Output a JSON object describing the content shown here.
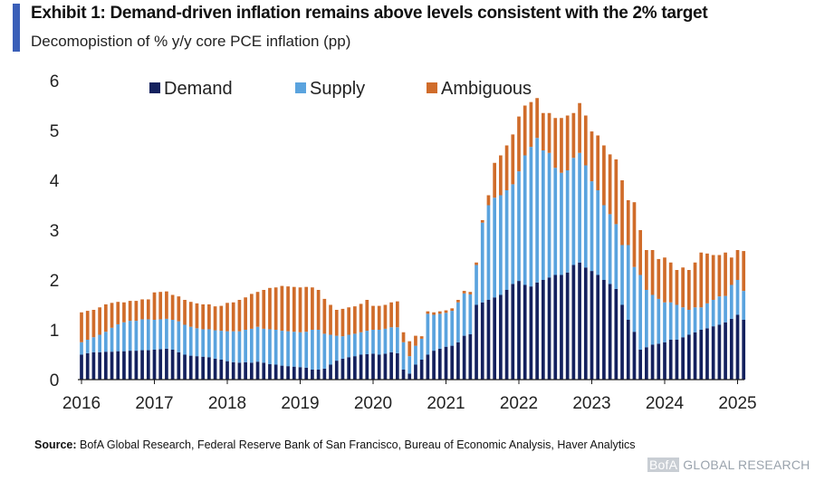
{
  "header": {
    "title": "Exhibit 1: Demand-driven inflation remains above levels consistent with the 2% target",
    "subtitle": "Decomopistion of % y/y core PCE inflation (pp)"
  },
  "footer": {
    "source_label": "Source:",
    "source_text": " BofA Global Research, Federal Reserve Bank of San Francisco, Bureau of Economic Analysis, Haver Analytics",
    "brand_bofa": "BofA",
    "brand_rest": " GLOBAL RESEARCH"
  },
  "chart_data": {
    "type": "bar",
    "stacked": true,
    "frequency": "monthly",
    "start": "2016-01",
    "ylim": [
      0,
      6
    ],
    "yticks": [
      "0",
      "1",
      "2",
      "3",
      "4",
      "5",
      "6"
    ],
    "xticks": [
      "2016",
      "2017",
      "2018",
      "2019",
      "2020",
      "2021",
      "2022",
      "2023",
      "2024",
      "2025"
    ],
    "grid": false,
    "legend_position": "top",
    "colors": {
      "demand": "#14215e",
      "supply": "#5aa3de",
      "ambiguous": "#d06c2a"
    },
    "series": [
      {
        "name": "Demand",
        "values": [
          0.5,
          0.53,
          0.55,
          0.55,
          0.56,
          0.56,
          0.57,
          0.57,
          0.58,
          0.58,
          0.59,
          0.59,
          0.6,
          0.61,
          0.62,
          0.6,
          0.55,
          0.5,
          0.48,
          0.47,
          0.46,
          0.45,
          0.42,
          0.4,
          0.37,
          0.35,
          0.34,
          0.35,
          0.34,
          0.36,
          0.34,
          0.31,
          0.3,
          0.28,
          0.27,
          0.26,
          0.25,
          0.24,
          0.2,
          0.2,
          0.22,
          0.3,
          0.38,
          0.42,
          0.45,
          0.47,
          0.5,
          0.51,
          0.52,
          0.5,
          0.52,
          0.55,
          0.53,
          0.2,
          0.12,
          0.3,
          0.4,
          0.5,
          0.58,
          0.62,
          0.66,
          0.68,
          0.75,
          0.88,
          0.91,
          1.5,
          1.55,
          1.6,
          1.65,
          1.7,
          1.8,
          1.92,
          1.98,
          1.9,
          1.87,
          1.95,
          2.0,
          2.05,
          2.1,
          2.1,
          2.15,
          2.3,
          2.35,
          2.25,
          2.18,
          2.1,
          2.0,
          1.92,
          1.82,
          1.5,
          1.2,
          0.96,
          0.6,
          0.65,
          0.7,
          0.72,
          0.75,
          0.8,
          0.8,
          0.85,
          0.9,
          0.95,
          1.0,
          1.03,
          1.07,
          1.1,
          1.15,
          1.22,
          1.3,
          1.2
        ]
      },
      {
        "name": "Supply",
        "values": [
          0.25,
          0.27,
          0.3,
          0.35,
          0.4,
          0.48,
          0.54,
          0.58,
          0.6,
          0.6,
          0.62,
          0.62,
          0.6,
          0.6,
          0.6,
          0.6,
          0.62,
          0.6,
          0.58,
          0.56,
          0.55,
          0.56,
          0.57,
          0.58,
          0.6,
          0.62,
          0.63,
          0.65,
          0.68,
          0.7,
          0.68,
          0.7,
          0.7,
          0.7,
          0.7,
          0.7,
          0.7,
          0.72,
          0.8,
          0.8,
          0.7,
          0.6,
          0.5,
          0.45,
          0.45,
          0.45,
          0.45,
          0.47,
          0.48,
          0.5,
          0.5,
          0.5,
          0.52,
          0.55,
          0.35,
          0.38,
          0.42,
          0.82,
          0.72,
          0.7,
          0.68,
          0.7,
          0.8,
          0.85,
          0.8,
          0.8,
          1.6,
          1.9,
          2.0,
          2.0,
          2.0,
          2.0,
          2.2,
          2.6,
          2.8,
          2.9,
          2.6,
          2.5,
          2.15,
          2.05,
          2.05,
          2.15,
          2.2,
          2.05,
          1.8,
          1.7,
          1.5,
          1.4,
          1.3,
          1.2,
          1.5,
          1.3,
          1.5,
          1.15,
          1.0,
          0.9,
          0.8,
          0.75,
          0.7,
          0.6,
          0.5,
          0.5,
          0.45,
          0.5,
          0.53,
          0.57,
          0.53,
          0.68,
          0.7,
          0.58
        ]
      },
      {
        "name": "Ambiguous",
        "values": [
          0.6,
          0.58,
          0.55,
          0.55,
          0.55,
          0.5,
          0.45,
          0.4,
          0.4,
          0.4,
          0.4,
          0.4,
          0.55,
          0.55,
          0.55,
          0.5,
          0.5,
          0.5,
          0.5,
          0.5,
          0.5,
          0.5,
          0.48,
          0.5,
          0.57,
          0.58,
          0.63,
          0.65,
          0.7,
          0.7,
          0.78,
          0.83,
          0.85,
          0.9,
          0.9,
          0.9,
          0.9,
          0.9,
          0.85,
          0.8,
          0.7,
          0.6,
          0.52,
          0.55,
          0.55,
          0.55,
          0.57,
          0.62,
          0.48,
          0.48,
          0.48,
          0.5,
          0.52,
          0.2,
          0.3,
          0.2,
          0.05,
          0.05,
          0.05,
          0.05,
          0.05,
          0.05,
          0.05,
          0.05,
          0.05,
          0.05,
          0.05,
          0.2,
          0.7,
          0.8,
          0.9,
          1.0,
          1.1,
          1.0,
          0.9,
          0.8,
          0.75,
          0.8,
          1.0,
          1.1,
          1.1,
          0.9,
          1.0,
          1.0,
          1.0,
          1.1,
          1.2,
          1.2,
          1.3,
          1.3,
          0.9,
          1.3,
          0.9,
          0.8,
          0.9,
          0.8,
          0.9,
          0.8,
          0.7,
          0.8,
          0.8,
          0.9,
          1.1,
          1.0,
          0.9,
          0.83,
          0.87,
          0.55,
          0.6,
          0.8
        ]
      }
    ]
  }
}
